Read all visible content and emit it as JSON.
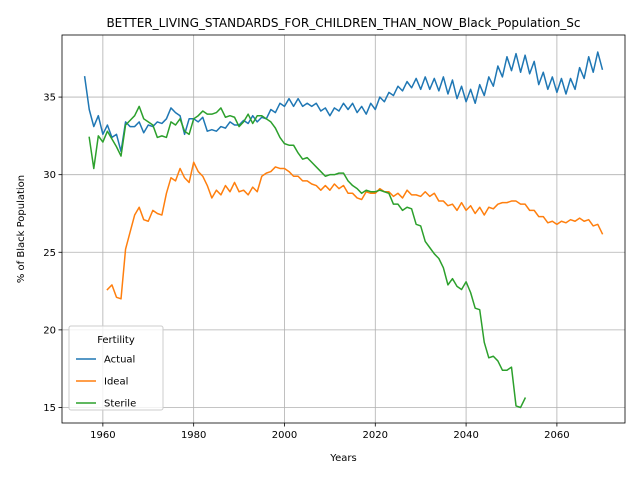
{
  "chart_data": {
    "type": "line",
    "title": "BETTER_LIVING_STANDARDS_FOR_CHILDREN_THAN_NOW_Black_Population_Sc",
    "xlabel": "Years",
    "ylabel": "% of Black Population",
    "xlim": [
      1951,
      2075
    ],
    "ylim": [
      14,
      39
    ],
    "xticks": [
      1960,
      1980,
      2000,
      2020,
      2040,
      2060
    ],
    "yticks": [
      15,
      20,
      25,
      30,
      35
    ],
    "grid": true,
    "legend": {
      "title": "Fertility",
      "placement": "lower-left"
    },
    "series": [
      {
        "name": "Actual",
        "color": "#1f77b4",
        "x": [
          1956,
          1957,
          1958,
          1959,
          1960,
          1961,
          1962,
          1963,
          1964,
          1965,
          1966,
          1967,
          1968,
          1969,
          1970,
          1971,
          1972,
          1973,
          1974,
          1975,
          1976,
          1977,
          1978,
          1979,
          1980,
          1981,
          1982,
          1983,
          1984,
          1985,
          1986,
          1987,
          1988,
          1989,
          1990,
          1991,
          1992,
          1993,
          1994,
          1995,
          1996,
          1997,
          1998,
          1999,
          2000,
          2001,
          2002,
          2003,
          2004,
          2005,
          2006,
          2007,
          2008,
          2009,
          2010,
          2011,
          2012,
          2013,
          2014,
          2015,
          2016,
          2017,
          2018,
          2019,
          2020,
          2021,
          2022,
          2023,
          2024,
          2025,
          2026,
          2027,
          2028,
          2029,
          2030,
          2031,
          2032,
          2033,
          2034,
          2035,
          2036,
          2037,
          2038,
          2039,
          2040,
          2041,
          2042,
          2043,
          2044,
          2045,
          2046,
          2047,
          2048,
          2049,
          2050,
          2051,
          2052,
          2053,
          2054,
          2055,
          2056,
          2057,
          2058,
          2059,
          2060,
          2061,
          2062,
          2063,
          2064,
          2065,
          2066,
          2067,
          2068,
          2069,
          2070
        ],
        "values": [
          36.3,
          34.2,
          33.1,
          33.8,
          32.6,
          33.2,
          32.4,
          32.6,
          31.5,
          33.4,
          33.1,
          33.1,
          33.4,
          32.7,
          33.2,
          33.1,
          33.4,
          33.3,
          33.6,
          34.3,
          34.0,
          33.8,
          32.6,
          33.6,
          33.6,
          33.4,
          33.7,
          32.8,
          32.9,
          32.8,
          33.1,
          33.0,
          33.4,
          33.2,
          33.2,
          33.5,
          33.3,
          33.8,
          33.4,
          33.7,
          33.6,
          34.2,
          34.0,
          34.6,
          34.4,
          34.9,
          34.4,
          34.9,
          34.4,
          34.6,
          34.4,
          34.6,
          34.1,
          34.3,
          33.8,
          34.3,
          34.1,
          34.6,
          34.2,
          34.6,
          34.0,
          34.4,
          33.9,
          34.6,
          34.2,
          35.0,
          34.7,
          35.3,
          35.1,
          35.7,
          35.4,
          36.0,
          35.6,
          36.2,
          35.5,
          36.3,
          35.5,
          36.2,
          35.4,
          36.3,
          35.2,
          36.1,
          34.9,
          35.7,
          34.7,
          35.5,
          34.6,
          35.8,
          35.1,
          36.3,
          35.7,
          37.0,
          36.3,
          37.6,
          36.7,
          37.8,
          36.6,
          37.7,
          36.5,
          37.3,
          35.8,
          36.6,
          35.5,
          36.3,
          35.3,
          36.2,
          35.2,
          36.2,
          35.5,
          36.9,
          36.2,
          37.6,
          36.6,
          37.9,
          36.8
        ]
      },
      {
        "name": "Ideal",
        "color": "#ff7f0e",
        "x": [
          1961,
          1962,
          1963,
          1964,
          1965,
          1966,
          1967,
          1968,
          1969,
          1970,
          1971,
          1972,
          1973,
          1974,
          1975,
          1976,
          1977,
          1978,
          1979,
          1980,
          1981,
          1982,
          1983,
          1984,
          1985,
          1986,
          1987,
          1988,
          1989,
          1990,
          1991,
          1992,
          1993,
          1994,
          1995,
          1996,
          1997,
          1998,
          1999,
          2000,
          2001,
          2002,
          2003,
          2004,
          2005,
          2006,
          2007,
          2008,
          2009,
          2010,
          2011,
          2012,
          2013,
          2014,
          2015,
          2016,
          2017,
          2018,
          2019,
          2020,
          2021,
          2022,
          2023,
          2024,
          2025,
          2026,
          2027,
          2028,
          2029,
          2030,
          2031,
          2032,
          2033,
          2034,
          2035,
          2036,
          2037,
          2038,
          2039,
          2040,
          2041,
          2042,
          2043,
          2044,
          2045,
          2046,
          2047,
          2048,
          2049,
          2050,
          2051,
          2052,
          2053,
          2054,
          2055,
          2056,
          2057,
          2058,
          2059,
          2060,
          2061,
          2062,
          2063,
          2064,
          2065,
          2066,
          2067,
          2068,
          2069,
          2070
        ],
        "values": [
          22.6,
          22.9,
          22.1,
          22.0,
          25.2,
          26.3,
          27.4,
          27.9,
          27.1,
          27.0,
          27.7,
          27.5,
          27.4,
          28.8,
          29.8,
          29.6,
          30.4,
          29.8,
          29.5,
          30.8,
          30.2,
          29.9,
          29.3,
          28.5,
          29.0,
          28.7,
          29.3,
          28.9,
          29.5,
          28.9,
          29.0,
          28.7,
          29.2,
          28.9,
          29.9,
          30.1,
          30.2,
          30.5,
          30.4,
          30.4,
          30.2,
          29.9,
          29.9,
          29.6,
          29.6,
          29.4,
          29.3,
          29.0,
          29.3,
          29.0,
          29.4,
          29.1,
          29.3,
          28.8,
          28.8,
          28.5,
          28.4,
          28.9,
          28.8,
          28.8,
          29.1,
          28.9,
          28.9,
          28.6,
          28.8,
          28.5,
          29.0,
          28.7,
          28.7,
          28.6,
          28.9,
          28.6,
          28.8,
          28.3,
          28.3,
          28.0,
          28.1,
          27.7,
          28.2,
          27.7,
          28.0,
          27.5,
          27.9,
          27.4,
          27.9,
          27.8,
          28.1,
          28.2,
          28.2,
          28.3,
          28.3,
          28.1,
          28.1,
          27.7,
          27.7,
          27.3,
          27.3,
          26.9,
          27.0,
          26.8,
          27.0,
          26.9,
          27.1,
          27.0,
          27.2,
          27.0,
          27.1,
          26.7,
          26.8,
          26.2
        ]
      },
      {
        "name": "Sterile",
        "color": "#2ca02c",
        "x": [
          1957,
          1958,
          1959,
          1960,
          1961,
          1962,
          1963,
          1964,
          1965,
          1966,
          1967,
          1968,
          1969,
          1970,
          1971,
          1972,
          1973,
          1974,
          1975,
          1976,
          1977,
          1978,
          1979,
          1980,
          1981,
          1982,
          1983,
          1984,
          1985,
          1986,
          1987,
          1988,
          1989,
          1990,
          1991,
          1992,
          1993,
          1994,
          1995,
          1996,
          1997,
          1998,
          1999,
          2000,
          2001,
          2002,
          2003,
          2004,
          2005,
          2006,
          2007,
          2008,
          2009,
          2010,
          2011,
          2012,
          2013,
          2014,
          2015,
          2016,
          2017,
          2018,
          2019,
          2020,
          2021,
          2022,
          2023,
          2024,
          2025,
          2026,
          2027,
          2028,
          2029,
          2030,
          2031,
          2032,
          2033,
          2034,
          2035,
          2036,
          2037,
          2038,
          2039,
          2040,
          2041,
          2042,
          2043,
          2044,
          2045,
          2046,
          2047,
          2048,
          2049,
          2050,
          2051,
          2052,
          2053
        ],
        "values": [
          32.4,
          30.4,
          32.5,
          32.1,
          32.8,
          32.3,
          31.8,
          31.2,
          33.2,
          33.5,
          33.8,
          34.4,
          33.6,
          33.4,
          33.2,
          32.4,
          32.5,
          32.4,
          33.4,
          33.2,
          33.6,
          32.8,
          32.6,
          33.6,
          33.8,
          34.1,
          33.9,
          33.9,
          34.0,
          34.3,
          33.7,
          33.8,
          33.7,
          33.1,
          33.4,
          33.9,
          33.3,
          33.8,
          33.8,
          33.6,
          33.4,
          33.0,
          32.4,
          32.0,
          31.9,
          31.9,
          31.4,
          31.0,
          31.1,
          30.8,
          30.5,
          30.2,
          29.9,
          30.0,
          30.0,
          30.1,
          30.1,
          29.6,
          29.3,
          29.1,
          28.8,
          29.0,
          28.9,
          28.9,
          29.0,
          28.9,
          28.8,
          28.1,
          28.1,
          27.7,
          27.9,
          27.8,
          26.8,
          26.7,
          25.7,
          25.3,
          24.9,
          24.6,
          24.0,
          22.9,
          23.3,
          22.8,
          22.6,
          23.1,
          22.4,
          21.4,
          21.3,
          19.2,
          18.2,
          18.3,
          18.0,
          17.4,
          17.4,
          17.6,
          15.1,
          15.0,
          15.6
        ]
      }
    ]
  }
}
